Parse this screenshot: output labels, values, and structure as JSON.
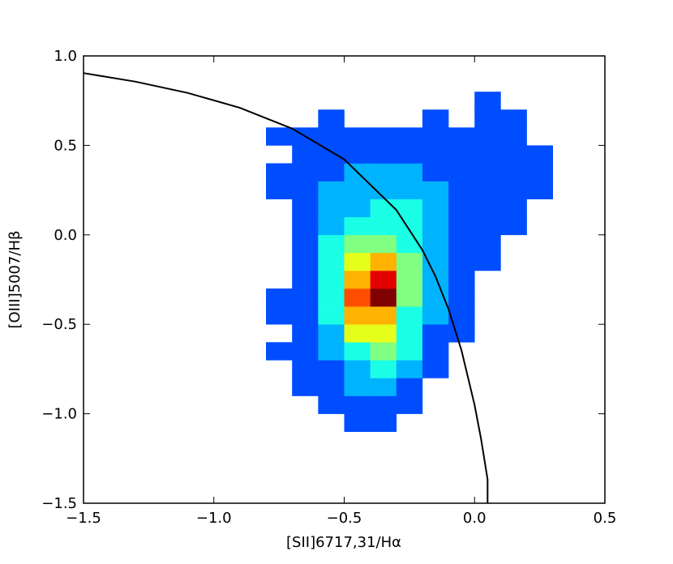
{
  "chart_data": {
    "type": "hist2d",
    "xlabel": "[SII]6717,31/Hα",
    "ylabel": "[OIII]5007/Hβ",
    "xlim": [
      -1.5,
      0.5
    ],
    "ylim": [
      -1.5,
      1.0
    ],
    "xticks": [
      {
        "value": -1.5,
        "label": "−1.5"
      },
      {
        "value": -1.0,
        "label": "−1.0"
      },
      {
        "value": -0.5,
        "label": "−0.5"
      },
      {
        "value": 0,
        "label": "0.0"
      },
      0.5
    ],
    "yticks": [
      {
        "value": -1.5,
        "label": "−1.5"
      },
      {
        "value": -1.0,
        "label": "−1.0"
      },
      {
        "value": -0.5,
        "label": "−0.5"
      },
      {
        "value": 0,
        "label": "0.0"
      },
      0.5,
      {
        "value": 1.0,
        "label": "1.0"
      }
    ],
    "cmap": "jet",
    "xbins": [
      -1.0,
      -0.9,
      -0.8,
      -0.7,
      -0.6,
      -0.5,
      -0.4,
      -0.3,
      -0.2,
      -0.1,
      0.0,
      0.1,
      0.2,
      0.3,
      0.4
    ],
    "ybins": [
      -1.1,
      -1.0,
      -0.9,
      -0.8,
      -0.7,
      -0.6,
      -0.5,
      -0.4,
      -0.3,
      -0.2,
      -0.1,
      0.0,
      0.1,
      0.2,
      0.3,
      0.4,
      0.5,
      0.6,
      0.7,
      0.8
    ],
    "counts": [
      [
        0,
        0,
        0,
        0,
        0,
        1,
        1,
        0,
        0,
        0,
        0,
        0,
        0,
        0
      ],
      [
        0,
        0,
        0,
        0,
        1,
        1,
        1,
        1,
        0,
        0,
        0,
        0,
        0,
        0
      ],
      [
        0,
        0,
        0,
        1,
        1,
        2,
        2,
        1,
        0,
        0,
        0,
        0,
        0,
        0
      ],
      [
        0,
        0,
        0,
        1,
        1,
        2,
        3,
        2,
        1,
        0,
        0,
        0,
        0,
        0
      ],
      [
        0,
        0,
        1,
        1,
        2,
        3,
        4,
        3,
        1,
        0,
        0,
        0,
        0,
        0
      ],
      [
        0,
        0,
        0,
        1,
        2,
        5,
        5,
        3,
        1,
        1,
        0,
        0,
        0,
        0
      ],
      [
        0,
        0,
        1,
        1,
        3,
        6,
        6,
        3,
        2,
        1,
        0,
        0,
        0,
        0
      ],
      [
        0,
        0,
        1,
        1,
        3,
        7,
        9,
        4,
        2,
        1,
        0,
        0,
        0,
        0
      ],
      [
        0,
        0,
        0,
        1,
        3,
        6,
        8,
        4,
        2,
        1,
        0,
        0,
        0,
        0
      ],
      [
        0,
        0,
        0,
        1,
        3,
        5,
        6,
        4,
        2,
        1,
        1,
        0,
        0,
        0
      ],
      [
        0,
        0,
        0,
        1,
        3,
        4,
        4,
        3,
        2,
        1,
        1,
        0,
        0,
        0
      ],
      [
        0,
        0,
        0,
        1,
        2,
        3,
        3,
        3,
        2,
        1,
        1,
        1,
        0,
        0
      ],
      [
        0,
        0,
        0,
        1,
        2,
        2,
        3,
        3,
        2,
        1,
        1,
        1,
        0,
        0
      ],
      [
        0,
        0,
        1,
        1,
        2,
        2,
        2,
        2,
        2,
        1,
        1,
        1,
        1,
        0
      ],
      [
        0,
        0,
        1,
        1,
        1,
        2,
        2,
        2,
        1,
        1,
        1,
        1,
        1,
        0
      ],
      [
        0,
        0,
        0,
        1,
        1,
        1,
        1,
        1,
        1,
        1,
        1,
        1,
        1,
        0
      ],
      [
        0,
        0,
        1,
        1,
        1,
        1,
        1,
        1,
        1,
        1,
        1,
        1,
        0,
        0
      ],
      [
        0,
        0,
        0,
        0,
        1,
        0,
        0,
        0,
        1,
        0,
        1,
        1,
        0,
        0
      ],
      [
        0,
        0,
        0,
        0,
        0,
        0,
        0,
        0,
        0,
        0,
        1,
        0,
        0,
        0
      ]
    ],
    "line": {
      "color": "#000000",
      "x": [
        -1.5,
        -1.3,
        -1.1,
        -0.9,
        -0.7,
        -0.5,
        -0.3,
        -0.2,
        -0.15,
        -0.1,
        -0.05,
        0.0,
        0.025,
        0.05,
        0.05
      ],
      "y": [
        0.904,
        0.856,
        0.793,
        0.71,
        0.594,
        0.422,
        0.139,
        -0.085,
        -0.232,
        -0.414,
        -0.646,
        -0.95,
        -1.141,
        -1.367,
        -1.5
      ]
    }
  }
}
